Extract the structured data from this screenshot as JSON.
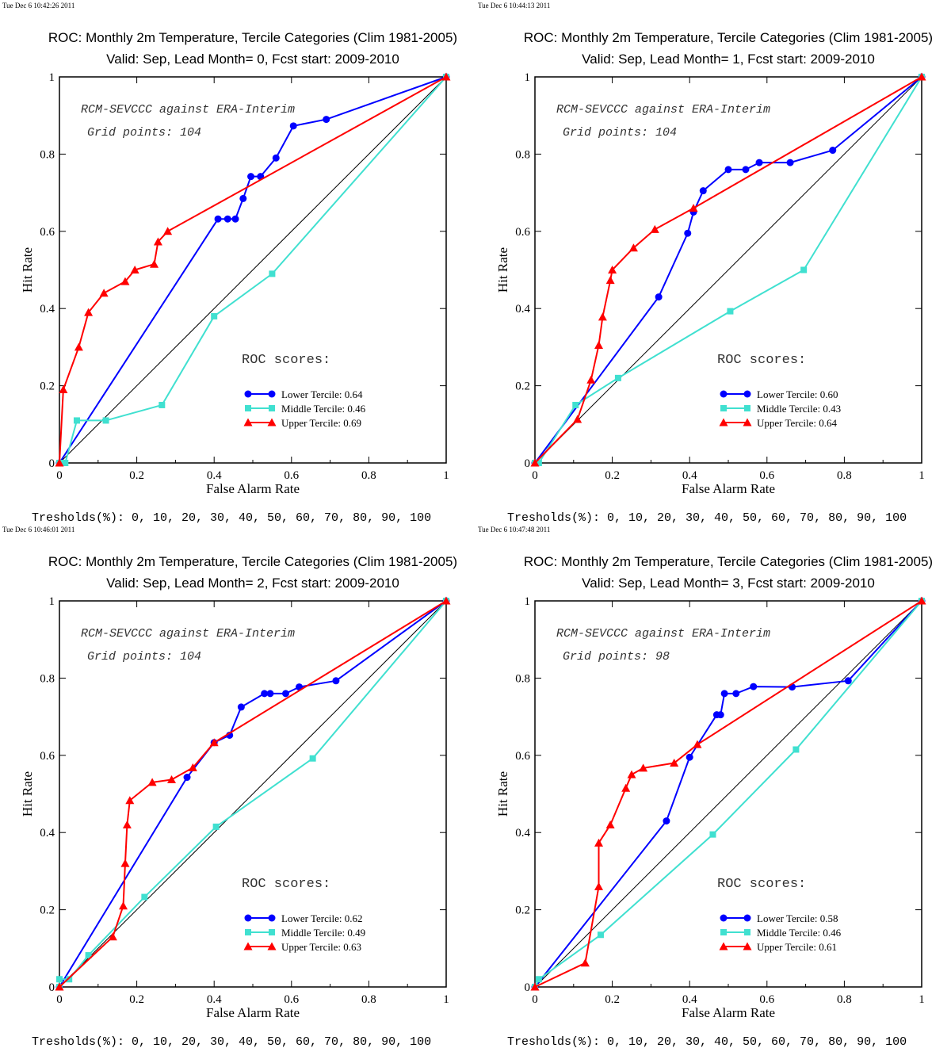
{
  "chart_data": [
    {
      "type": "line",
      "timestamp": "Tue Dec  6 10:42:26 2011",
      "title": "ROC: Monthly 2m Temperature, Tercile Categories (Clim 1981-2005)",
      "subtitle": "Valid: Sep, Lead Month= 0, Fcst start: 2009-2010",
      "xlabel": "False Alarm Rate",
      "ylabel": "Hit Rate",
      "xlim": [
        0,
        1
      ],
      "ylim": [
        0,
        1
      ],
      "xticks": [
        "0",
        "0.2",
        "0.4",
        "0.6",
        "0.8",
        "1"
      ],
      "yticks": [
        "0",
        "0.2",
        "0.4",
        "0.6",
        "0.8",
        "1"
      ],
      "annotation_line1": "RCM-SEVCCC against ERA-Interim",
      "annotation_line2": "Grid points:  104",
      "scores_title": "ROC scores:",
      "thresholds": "Tresholds(%): 0, 10, 20, 30, 40, 50, 60, 70, 80, 90, 100",
      "grid": false,
      "legend_position": "lower-right",
      "series": [
        {
          "name": "Lower Tercile: 0.64",
          "color": "#0000ff",
          "marker": "circle",
          "x": [
            0,
            0.41,
            0.435,
            0.455,
            0.475,
            0.495,
            0.52,
            0.56,
            0.605,
            0.69,
            1
          ],
          "y": [
            0,
            0.632,
            0.632,
            0.632,
            0.685,
            0.742,
            0.742,
            0.79,
            0.873,
            0.89,
            1
          ]
        },
        {
          "name": "Middle Tercile: 0.46",
          "color": "#40e0d0",
          "marker": "square",
          "x": [
            0,
            0.015,
            0.045,
            0.12,
            0.265,
            0.4,
            0.55,
            1
          ],
          "y": [
            0,
            0,
            0.11,
            0.11,
            0.15,
            0.38,
            0.49,
            1
          ]
        },
        {
          "name": "Upper Tercile: 0.69",
          "color": "#ff0000",
          "marker": "triangle",
          "x": [
            0,
            0.01,
            0.05,
            0.075,
            0.115,
            0.17,
            0.195,
            0.245,
            0.255,
            0.28,
            1
          ],
          "y": [
            0,
            0.19,
            0.3,
            0.39,
            0.44,
            0.47,
            0.5,
            0.515,
            0.573,
            0.6,
            1
          ]
        }
      ]
    },
    {
      "type": "line",
      "timestamp": "Tue Dec  6 10:44:13 2011",
      "title": "ROC: Monthly 2m Temperature, Tercile Categories (Clim 1981-2005)",
      "subtitle": "Valid: Sep, Lead Month= 1, Fcst start: 2009-2010",
      "xlabel": "False Alarm Rate",
      "ylabel": "Hit Rate",
      "xlim": [
        0,
        1
      ],
      "ylim": [
        0,
        1
      ],
      "xticks": [
        "0",
        "0.2",
        "0.4",
        "0.6",
        "0.8",
        "1"
      ],
      "yticks": [
        "0",
        "0.2",
        "0.4",
        "0.6",
        "0.8",
        "1"
      ],
      "annotation_line1": "RCM-SEVCCC against ERA-Interim",
      "annotation_line2": "Grid points:  104",
      "scores_title": "ROC scores:",
      "thresholds": "Tresholds(%): 0, 10, 20, 30, 40, 50, 60, 70, 80, 90, 100",
      "grid": false,
      "legend_position": "lower-right",
      "series": [
        {
          "name": "Lower Tercile: 0.60",
          "color": "#0000ff",
          "marker": "circle",
          "x": [
            0,
            0.32,
            0.395,
            0.41,
            0.435,
            0.5,
            0.545,
            0.58,
            0.66,
            0.77,
            1
          ],
          "y": [
            0,
            0.43,
            0.595,
            0.65,
            0.705,
            0.76,
            0.76,
            0.778,
            0.778,
            0.81,
            1
          ]
        },
        {
          "name": "Middle Tercile: 0.43",
          "color": "#40e0d0",
          "marker": "square",
          "x": [
            0,
            0.01,
            0.105,
            0.215,
            0.505,
            0.695,
            1
          ],
          "y": [
            0,
            0,
            0.15,
            0.22,
            0.393,
            0.5,
            1
          ]
        },
        {
          "name": "Upper Tercile: 0.64",
          "color": "#ff0000",
          "marker": "triangle",
          "x": [
            0,
            0.11,
            0.145,
            0.165,
            0.175,
            0.195,
            0.2,
            0.255,
            0.31,
            0.41,
            1
          ],
          "y": [
            0,
            0.113,
            0.215,
            0.305,
            0.378,
            0.473,
            0.5,
            0.557,
            0.605,
            0.66,
            1
          ]
        }
      ]
    },
    {
      "type": "line",
      "timestamp": "Tue Dec  6 10:46:01 2011",
      "title": "ROC: Monthly 2m Temperature, Tercile Categories (Clim 1981-2005)",
      "subtitle": "Valid: Sep, Lead Month= 2, Fcst start: 2009-2010",
      "xlabel": "False Alarm Rate",
      "ylabel": "Hit Rate",
      "xlim": [
        0,
        1
      ],
      "ylim": [
        0,
        1
      ],
      "xticks": [
        "0",
        "0.2",
        "0.4",
        "0.6",
        "0.8",
        "1"
      ],
      "yticks": [
        "0",
        "0.2",
        "0.4",
        "0.6",
        "0.8",
        "1"
      ],
      "annotation_line1": "RCM-SEVCCC against ERA-Interim",
      "annotation_line2": "Grid points:  104",
      "scores_title": "ROC scores:",
      "thresholds": "Tresholds(%): 0, 10, 20, 30, 40, 50, 60, 70, 80, 90, 100",
      "grid": false,
      "legend_position": "lower-right",
      "series": [
        {
          "name": "Lower Tercile: 0.62",
          "color": "#0000ff",
          "marker": "circle",
          "x": [
            0,
            0.33,
            0.4,
            0.44,
            0.47,
            0.53,
            0.545,
            0.585,
            0.62,
            0.715,
            1
          ],
          "y": [
            0,
            0.543,
            0.633,
            0.652,
            0.725,
            0.76,
            0.76,
            0.76,
            0.777,
            0.793,
            1
          ]
        },
        {
          "name": "Middle Tercile: 0.49",
          "color": "#40e0d0",
          "marker": "square",
          "x": [
            0,
            0,
            0.025,
            0.075,
            0.22,
            0.405,
            0.655,
            1
          ],
          "y": [
            0,
            0.02,
            0.02,
            0.082,
            0.233,
            0.415,
            0.592,
            1
          ]
        },
        {
          "name": "Upper Tercile: 0.63",
          "color": "#ff0000",
          "marker": "triangle",
          "x": [
            0,
            0.138,
            0.165,
            0.17,
            0.175,
            0.182,
            0.24,
            0.29,
            0.345,
            0.4,
            1
          ],
          "y": [
            0,
            0.13,
            0.21,
            0.32,
            0.42,
            0.483,
            0.53,
            0.537,
            0.568,
            0.633,
            1
          ]
        }
      ]
    },
    {
      "type": "line",
      "timestamp": "Tue Dec  6 10:47:48 2011",
      "title": "ROC: Monthly 2m Temperature, Tercile Categories (Clim 1981-2005)",
      "subtitle": "Valid: Sep, Lead Month= 3, Fcst start: 2009-2010",
      "xlabel": "False Alarm Rate",
      "ylabel": "Hit Rate",
      "xlim": [
        0,
        1
      ],
      "ylim": [
        0,
        1
      ],
      "xticks": [
        "0",
        "0.2",
        "0.4",
        "0.6",
        "0.8",
        "1"
      ],
      "yticks": [
        "0",
        "0.2",
        "0.4",
        "0.6",
        "0.8",
        "1"
      ],
      "annotation_line1": "RCM-SEVCCC against ERA-Interim",
      "annotation_line2": "Grid points:    98",
      "scores_title": "ROC scores:",
      "thresholds": "Tresholds(%): 0, 10, 20, 30, 40, 50, 60, 70, 80, 90, 100",
      "grid": false,
      "legend_position": "lower-right",
      "series": [
        {
          "name": "Lower Tercile: 0.58",
          "color": "#0000ff",
          "marker": "circle",
          "x": [
            0,
            0.34,
            0.4,
            0.47,
            0.48,
            0.49,
            0.52,
            0.565,
            0.665,
            0.81,
            1
          ],
          "y": [
            0,
            0.43,
            0.595,
            0.705,
            0.705,
            0.76,
            0.76,
            0.778,
            0.777,
            0.793,
            1
          ]
        },
        {
          "name": "Middle Tercile: 0.46",
          "color": "#40e0d0",
          "marker": "square",
          "x": [
            0,
            0.01,
            0.17,
            0.46,
            0.675,
            1
          ],
          "y": [
            0,
            0.02,
            0.135,
            0.395,
            0.615,
            1
          ]
        },
        {
          "name": "Upper Tercile: 0.61",
          "color": "#ff0000",
          "marker": "triangle",
          "x": [
            0,
            0.13,
            0.165,
            0.165,
            0.195,
            0.235,
            0.25,
            0.28,
            0.36,
            0.42,
            1
          ],
          "y": [
            0,
            0.062,
            0.26,
            0.373,
            0.42,
            0.515,
            0.55,
            0.567,
            0.58,
            0.628,
            1
          ]
        }
      ]
    }
  ]
}
